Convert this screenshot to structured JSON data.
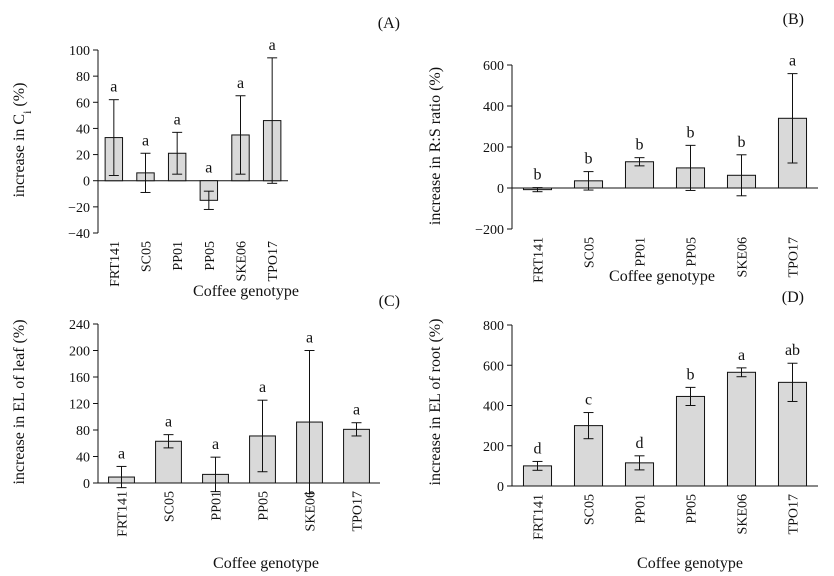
{
  "bar_fill": "#d9d9d9",
  "bar_stroke": "#111111",
  "chart_data": [
    {
      "type": "bar",
      "panel": "(A)",
      "xlabel": "Coffee genotype",
      "ylabel": "increase in Ci (%)",
      "ylabel_main": "increase in C",
      "ylabel_sub": "i",
      "ylabel_end": " (%)",
      "categories": [
        "FRT141",
        "SC05",
        "PP01",
        "PP05",
        "SKE06",
        "TPO17"
      ],
      "values": [
        33,
        6,
        21,
        -15,
        35,
        46
      ],
      "error": [
        29,
        15,
        16,
        7,
        30,
        48
      ],
      "letters": [
        "a",
        "a",
        "a",
        "a",
        "a",
        "a"
      ],
      "ylim": [
        -40,
        100
      ],
      "yticks": [
        -40,
        -20,
        0,
        20,
        40,
        60,
        80,
        100
      ],
      "ytick_labels": [
        "−40",
        "−20",
        "0",
        "20",
        "40",
        "60",
        "80",
        "100"
      ],
      "grid": false
    },
    {
      "type": "bar",
      "panel": "(B)",
      "xlabel": "Coffee genotype",
      "ylabel": "increase in R:S ratio (%)",
      "categories": [
        "FRT141",
        "SC05",
        "PP01",
        "PP05",
        "SKE06",
        "TPO17"
      ],
      "values": [
        -8,
        35,
        128,
        98,
        62,
        340
      ],
      "error": [
        10,
        45,
        20,
        110,
        100,
        218
      ],
      "letters": [
        "b",
        "b",
        "b",
        "b",
        "b",
        "a"
      ],
      "ylim": [
        -200,
        600
      ],
      "yticks": [
        -200,
        0,
        200,
        400,
        600
      ],
      "ytick_labels": [
        "−200",
        "0",
        "200",
        "400",
        "600"
      ],
      "grid": false
    },
    {
      "type": "bar",
      "panel": "(C)",
      "xlabel": "Coffee genotype",
      "ylabel": "increase in EL of leaf (%)",
      "categories": [
        "FRT141",
        "SC05",
        "PP01",
        "PP05",
        "SKE06",
        "TPO17"
      ],
      "values": [
        9,
        63,
        13,
        71,
        92,
        81
      ],
      "error": [
        16,
        10,
        26,
        54,
        108,
        10
      ],
      "letters": [
        "a",
        "a",
        "a",
        "a",
        "a",
        "a"
      ],
      "ylim": [
        0,
        240
      ],
      "yticks": [
        0,
        40,
        80,
        120,
        160,
        200,
        240
      ],
      "ytick_labels": [
        "0",
        "40",
        "80",
        "120",
        "160",
        "200",
        "240"
      ],
      "grid": false
    },
    {
      "type": "bar",
      "panel": "(D)",
      "xlabel": "Coffee genotype",
      "ylabel": "increase in EL of root (%)",
      "categories": [
        "FRT141",
        "SC05",
        "PP01",
        "PP05",
        "SKE06",
        "TPO17"
      ],
      "values": [
        100,
        300,
        115,
        445,
        565,
        515
      ],
      "error": [
        22,
        65,
        35,
        45,
        22,
        95
      ],
      "letters": [
        "d",
        "c",
        "d",
        "b",
        "a",
        "ab"
      ],
      "ylim": [
        0,
        800
      ],
      "yticks": [
        0,
        200,
        400,
        600,
        800
      ],
      "ytick_labels": [
        "0",
        "200",
        "400",
        "600",
        "800"
      ],
      "grid": false
    }
  ]
}
